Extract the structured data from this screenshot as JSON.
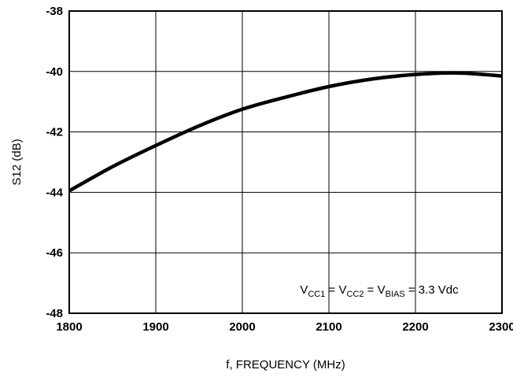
{
  "chart_data": {
    "type": "line",
    "title": "",
    "xlabel": "f, FREQUENCY (MHz)",
    "ylabel": "S12 (dB)",
    "xlim": [
      1800,
      2300
    ],
    "ylim": [
      -48,
      -38
    ],
    "xticks": [
      1800,
      1900,
      2000,
      2100,
      2200,
      2300
    ],
    "yticks": [
      -48,
      -46,
      -44,
      -42,
      -40,
      -38
    ],
    "x_tick_labels": [
      "1800",
      "1900",
      "2000",
      "2100",
      "2200",
      "2300"
    ],
    "y_tick_labels": [
      "-48",
      "-46",
      "-44",
      "-42",
      "-40",
      "-38"
    ],
    "grid": true,
    "series": [
      {
        "x": [
          1800,
          1850,
          1900,
          1950,
          2000,
          2050,
          2100,
          2150,
          2200,
          2250,
          2300
        ],
        "y": [
          -43.95,
          -43.15,
          -42.45,
          -41.8,
          -41.25,
          -40.85,
          -40.5,
          -40.25,
          -40.1,
          -40.05,
          -40.15
        ]
      }
    ],
    "annotation": {
      "parts": [
        {
          "text": "V",
          "sub": false
        },
        {
          "text": "CC1",
          "sub": true
        },
        {
          "text": " = V",
          "sub": false
        },
        {
          "text": "CC2",
          "sub": true
        },
        {
          "text": " = V",
          "sub": false
        },
        {
          "text": "BIAS",
          "sub": true
        },
        {
          "text": " = 3.3 Vdc",
          "sub": false
        }
      ]
    },
    "colors": {
      "line": "#000000",
      "grid": "#000000",
      "background": "#ffffff"
    }
  }
}
